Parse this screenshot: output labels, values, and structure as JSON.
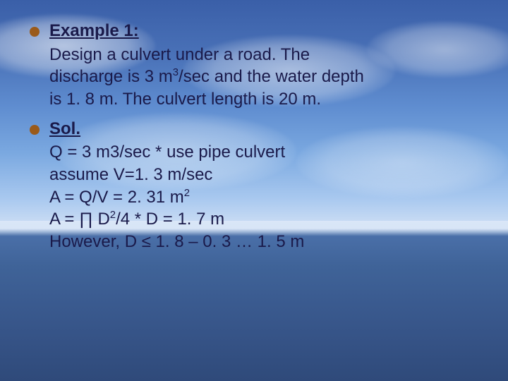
{
  "slide": {
    "typography": {
      "font_family": "Verdana",
      "fontsize_pt": 24,
      "line_height": 1.32,
      "text_color": "#1a1a4a",
      "bullet_color": "#9a5a1a"
    },
    "background": {
      "type": "photo-style-gradient",
      "sky_top": "#3a5fa8",
      "sky_mid": "#a8c8ef",
      "horizon": "#d0e0f5",
      "water_top": "#4a6fa8",
      "water_bottom": "#2f4a7a"
    },
    "items": [
      {
        "heading": "Example 1:",
        "body_lines": [
          "Design a culvert under a road.  The",
          "discharge is 3 m³/sec and the water depth",
          "is 1. 8 m.  The culvert length is 20 m."
        ]
      },
      {
        "heading": "Sol.",
        "body_lines": [
          "Q = 3 m3/sec            * use pipe culvert",
          "assume V=1. 3 m/sec",
          "A = Q/V = 2. 31 m²",
          "A = ∏ D²/4               * D = 1. 7 m",
          "However, D ≤ 1. 8 – 0. 3   … 1. 5 m"
        ]
      }
    ]
  }
}
